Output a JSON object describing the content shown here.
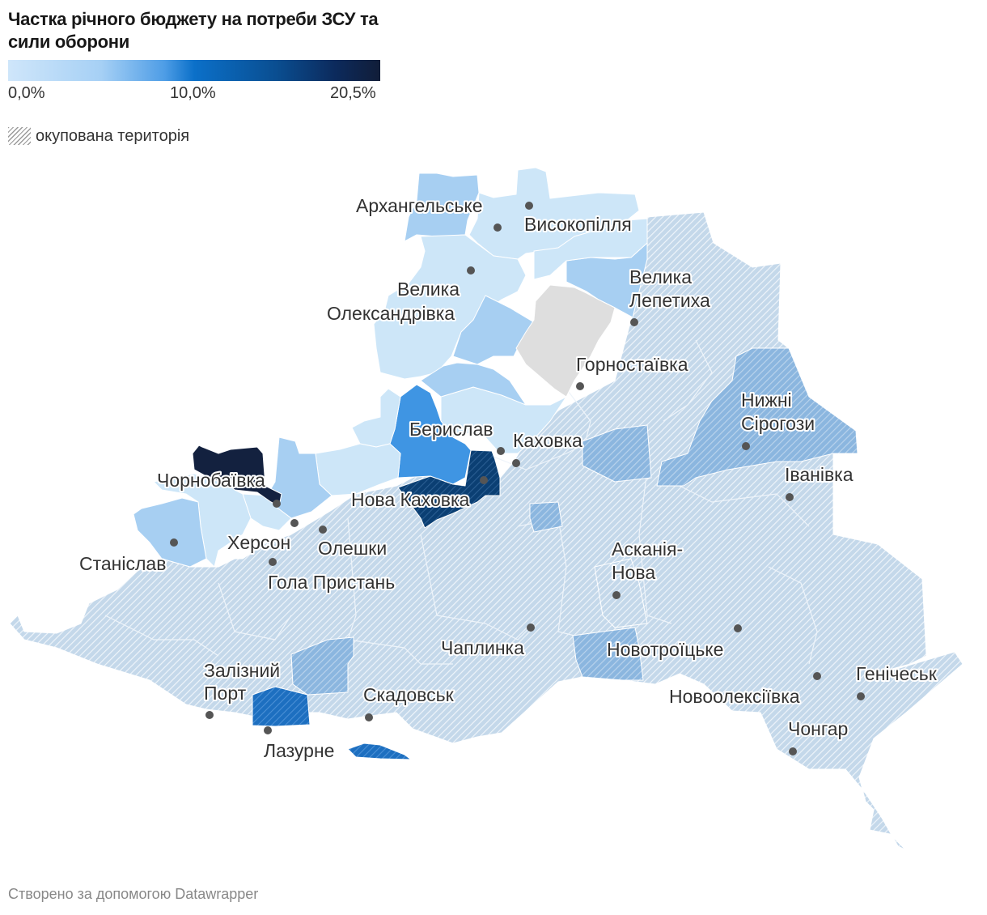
{
  "title": "Частка річного бюджету на потреби ЗСУ та сили оборони",
  "legend": {
    "scale_labels": [
      "0,0%",
      "10,0%",
      "20,5%"
    ],
    "occupied_label": "окупована територія"
  },
  "colors": {
    "occupied_base": "#c4d8ea",
    "occupied_hatch": "#e8f0f7",
    "no_data": "#dedede",
    "very_light": "#cde6f8",
    "light": "#a4cdf2",
    "medium": "#3f95e3",
    "strong": "#0a4a86",
    "darkest": "#13213f",
    "occ_medium": "#7faedc"
  },
  "cities": [
    {
      "name": "Архангельське",
      "lines": [
        "Архангельське"
      ]
    },
    {
      "name": "Високопілля",
      "lines": [
        "Високопілля"
      ]
    },
    {
      "name": "Велика Олександрівка",
      "lines": [
        "Велика",
        "Олександрівка"
      ]
    },
    {
      "name": "Велика Лепетиха",
      "lines": [
        "Велика",
        "Лепетиха"
      ]
    },
    {
      "name": "Горностаївка",
      "lines": [
        "Горностаївка"
      ]
    },
    {
      "name": "Нижні Сірогози",
      "lines": [
        "Нижні",
        "Сірогози"
      ]
    },
    {
      "name": "Берислав",
      "lines": [
        "Берислав"
      ]
    },
    {
      "name": "Каховка",
      "lines": [
        "Каховка"
      ]
    },
    {
      "name": "Чорнобаївка",
      "lines": [
        "Чорнобаївка"
      ]
    },
    {
      "name": "Нова Каховка",
      "lines": [
        "Нова Каховка"
      ]
    },
    {
      "name": "Іванівка",
      "lines": [
        "Іванівка"
      ]
    },
    {
      "name": "Херсон",
      "lines": [
        "Херсон"
      ]
    },
    {
      "name": "Олешки",
      "lines": [
        "Олешки"
      ]
    },
    {
      "name": "Станіслав",
      "lines": [
        "Станіслав"
      ]
    },
    {
      "name": "Гола Пристань",
      "lines": [
        "Гола Пристань"
      ]
    },
    {
      "name": "Асканія-Нова",
      "lines": [
        "Асканія-",
        "Нова"
      ]
    },
    {
      "name": "Чаплинка",
      "lines": [
        "Чаплинка"
      ]
    },
    {
      "name": "Новотроїцьке",
      "lines": [
        "Новотроїцьке"
      ]
    },
    {
      "name": "Залізний Порт",
      "lines": [
        "Залізний",
        "Порт"
      ]
    },
    {
      "name": "Скадовськ",
      "lines": [
        "Скадовськ"
      ]
    },
    {
      "name": "Генічеськ",
      "lines": [
        "Генічеськ"
      ]
    },
    {
      "name": "Новоолексіївка",
      "lines": [
        "Новоолексіївка"
      ]
    },
    {
      "name": "Чонгар",
      "lines": [
        "Чонгар"
      ]
    },
    {
      "name": "Лазурне",
      "lines": [
        "Лазурне"
      ]
    }
  ],
  "credit": "Створено за допомогою Datawrapper"
}
